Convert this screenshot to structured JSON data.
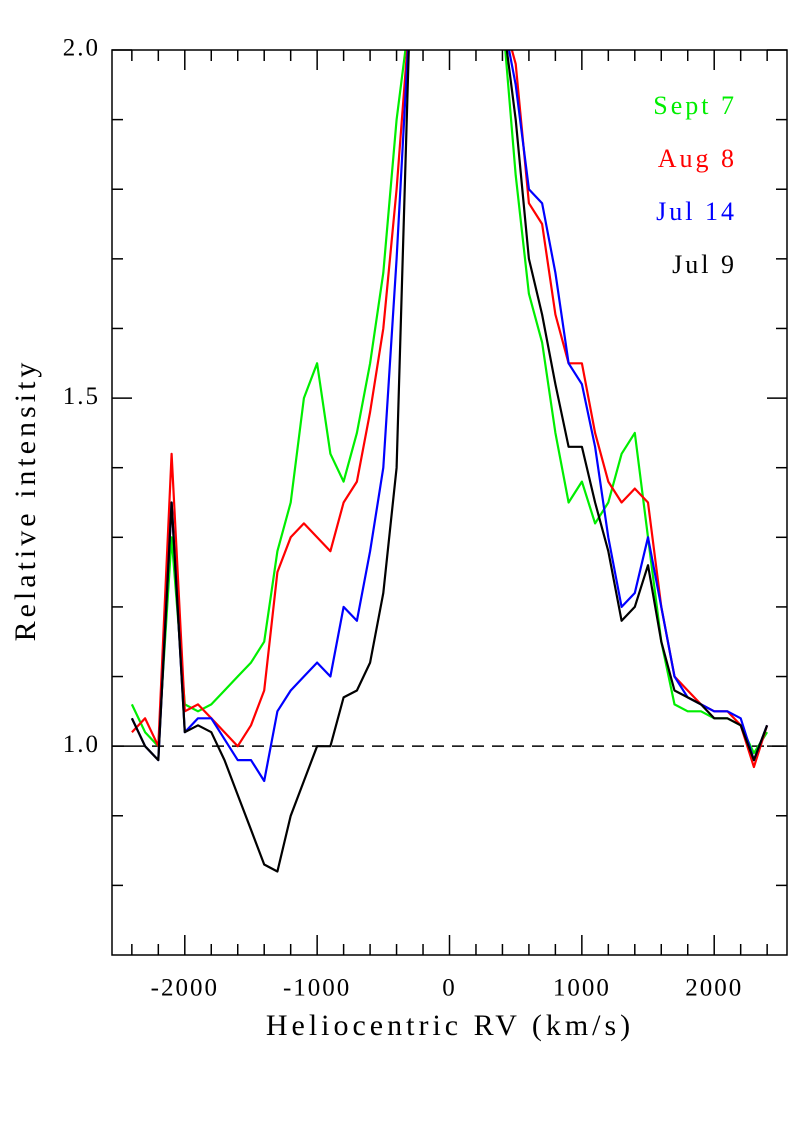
{
  "chart_data": {
    "type": "line",
    "xlabel": "Heliocentric RV  (km/s)",
    "ylabel": "Relative intensity",
    "x": [
      -2400,
      -2300,
      -2200,
      -2100,
      -2000,
      -1900,
      -1800,
      -1700,
      -1600,
      -1500,
      -1400,
      -1300,
      -1200,
      -1100,
      -1000,
      -900,
      -800,
      -700,
      -600,
      -500,
      -400,
      -300,
      -200,
      -100,
      0,
      100,
      200,
      300,
      400,
      500,
      600,
      700,
      800,
      900,
      1000,
      1100,
      1200,
      1300,
      1400,
      1500,
      1600,
      1700,
      1800,
      1900,
      2000,
      2100,
      2200,
      2300,
      2400
    ],
    "series": [
      {
        "name": "Sept 7",
        "color": "#00ee00",
        "values": [
          1.06,
          1.02,
          1.0,
          1.3,
          1.06,
          1.05,
          1.06,
          1.08,
          1.1,
          1.12,
          1.15,
          1.28,
          1.35,
          1.5,
          1.55,
          1.42,
          1.38,
          1.45,
          1.55,
          1.68,
          1.9,
          2.05,
          null,
          null,
          null,
          null,
          null,
          null,
          2.05,
          1.82,
          1.65,
          1.58,
          1.45,
          1.35,
          1.38,
          1.32,
          1.35,
          1.42,
          1.45,
          1.3,
          1.15,
          1.06,
          1.05,
          1.05,
          1.04,
          1.04,
          1.03,
          0.99,
          1.02
        ]
      },
      {
        "name": "Aug 8",
        "color": "#ff0000",
        "values": [
          1.02,
          1.04,
          1.0,
          1.42,
          1.05,
          1.06,
          1.04,
          1.02,
          1.0,
          1.03,
          1.08,
          1.25,
          1.3,
          1.32,
          1.3,
          1.28,
          1.35,
          1.38,
          1.48,
          1.6,
          1.8,
          2.05,
          null,
          null,
          null,
          null,
          null,
          null,
          2.05,
          1.98,
          1.78,
          1.75,
          1.62,
          1.55,
          1.55,
          1.45,
          1.38,
          1.35,
          1.37,
          1.35,
          1.2,
          1.1,
          1.08,
          1.06,
          1.05,
          1.05,
          1.03,
          0.97,
          1.03
        ]
      },
      {
        "name": "Jul 14",
        "color": "#0000ff",
        "values": [
          1.04,
          1.0,
          0.98,
          1.35,
          1.02,
          1.04,
          1.04,
          1.01,
          0.98,
          0.98,
          0.95,
          1.05,
          1.08,
          1.1,
          1.12,
          1.1,
          1.2,
          1.18,
          1.28,
          1.4,
          1.7,
          2.05,
          null,
          null,
          null,
          null,
          null,
          null,
          2.05,
          1.95,
          1.8,
          1.78,
          1.68,
          1.55,
          1.52,
          1.43,
          1.3,
          1.2,
          1.22,
          1.3,
          1.2,
          1.1,
          1.07,
          1.06,
          1.05,
          1.05,
          1.04,
          0.98,
          1.03
        ]
      },
      {
        "name": "Jul 9",
        "color": "#000000",
        "values": [
          1.04,
          1.0,
          0.98,
          1.35,
          1.02,
          1.03,
          1.02,
          0.98,
          0.93,
          0.88,
          0.83,
          0.82,
          0.9,
          0.95,
          1.0,
          1.0,
          1.07,
          1.08,
          1.12,
          1.22,
          1.4,
          2.05,
          null,
          null,
          null,
          null,
          null,
          null,
          2.05,
          1.9,
          1.7,
          1.62,
          1.52,
          1.43,
          1.43,
          1.35,
          1.28,
          1.18,
          1.2,
          1.26,
          1.15,
          1.08,
          1.07,
          1.06,
          1.04,
          1.04,
          1.03,
          0.98,
          1.03
        ]
      }
    ],
    "xlim": [
      -2550,
      2550
    ],
    "ylim": [
      0.7,
      2.0
    ],
    "xticks": [
      -2000,
      -1000,
      0,
      1000,
      2000
    ],
    "yticks": [
      {
        "value": 1,
        "label": "1.0"
      },
      1.5,
      {
        "value": 2,
        "label": "2.0"
      }
    ],
    "xticks_minor": [
      -2400,
      -2200,
      -1800,
      -1600,
      -1400,
      -1200,
      -800,
      -600,
      -400,
      -200,
      200,
      400,
      600,
      800,
      1200,
      1400,
      1600,
      1800,
      2200,
      2400
    ],
    "yticks_minor": [
      0.8,
      0.9,
      1.1,
      1.2,
      1.3,
      1.4,
      1.6,
      1.7,
      1.8,
      1.9
    ],
    "hline": 1,
    "legend": "upper right"
  }
}
